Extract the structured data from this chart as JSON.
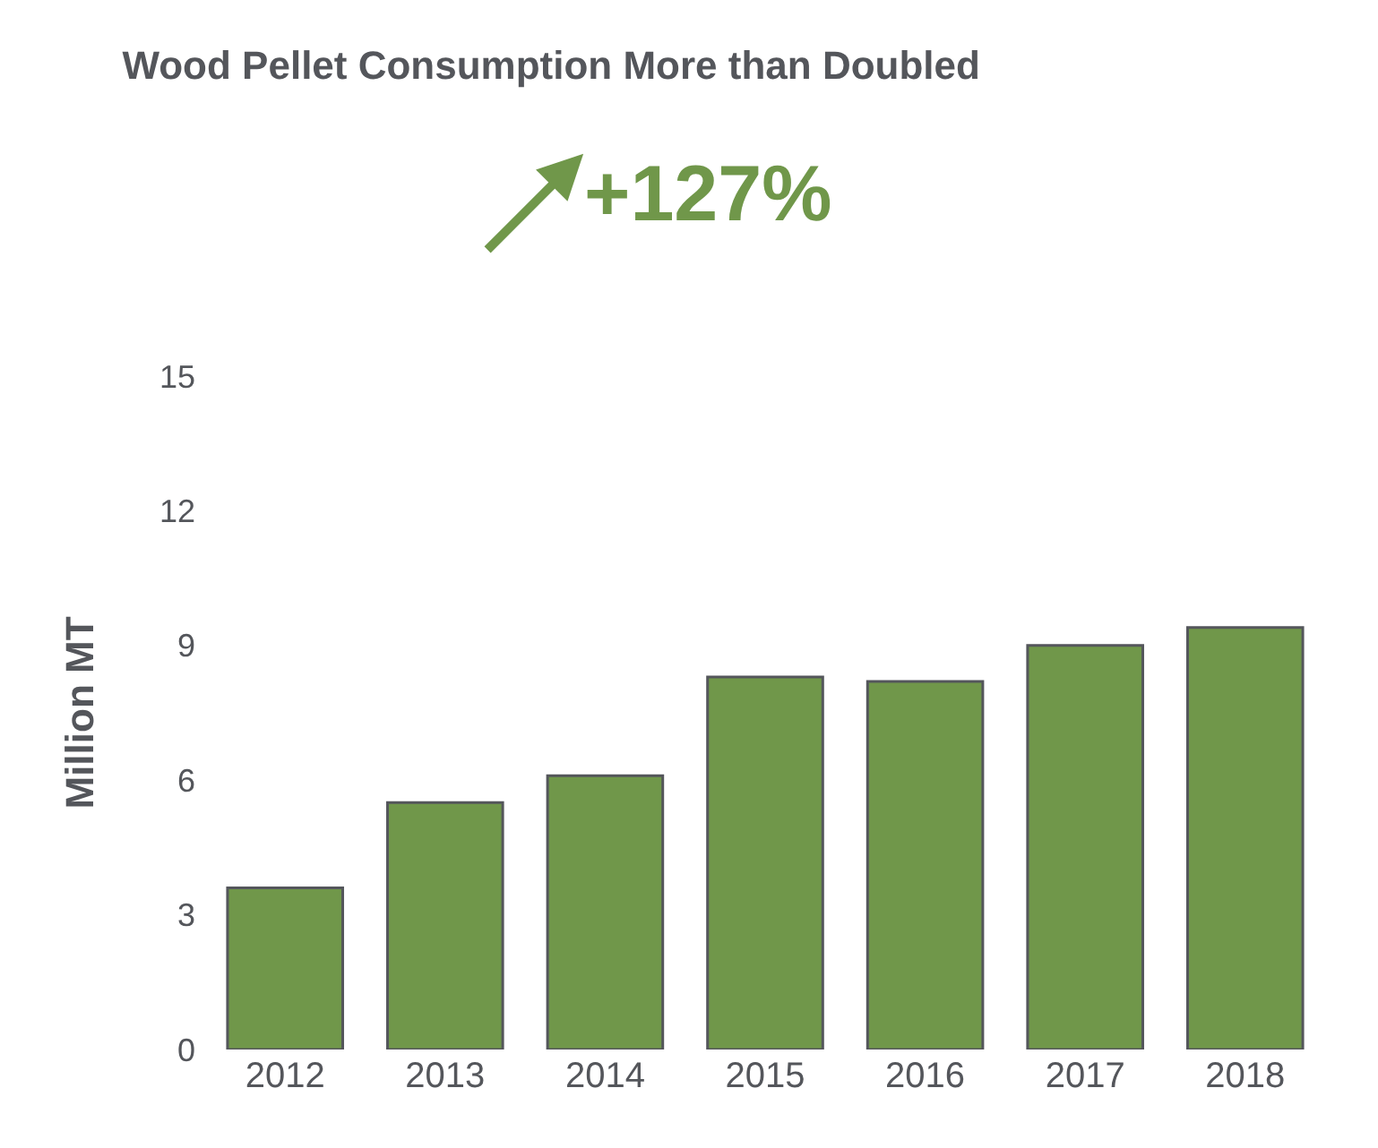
{
  "chart_data": {
    "type": "bar",
    "title": "Wood Pellet Consumption More than Doubled",
    "subtitle": "+127%",
    "ylabel": "Million MT",
    "categories": [
      "2012",
      "2013",
      "2014",
      "2015",
      "2016",
      "2017",
      "2018"
    ],
    "values": [
      3.6,
      5.5,
      6.1,
      8.3,
      8.2,
      9.0,
      9.4
    ],
    "color": "#70974a",
    "ylim": [
      0,
      15
    ],
    "yticks": [
      0,
      3,
      6,
      9,
      12,
      15
    ]
  }
}
